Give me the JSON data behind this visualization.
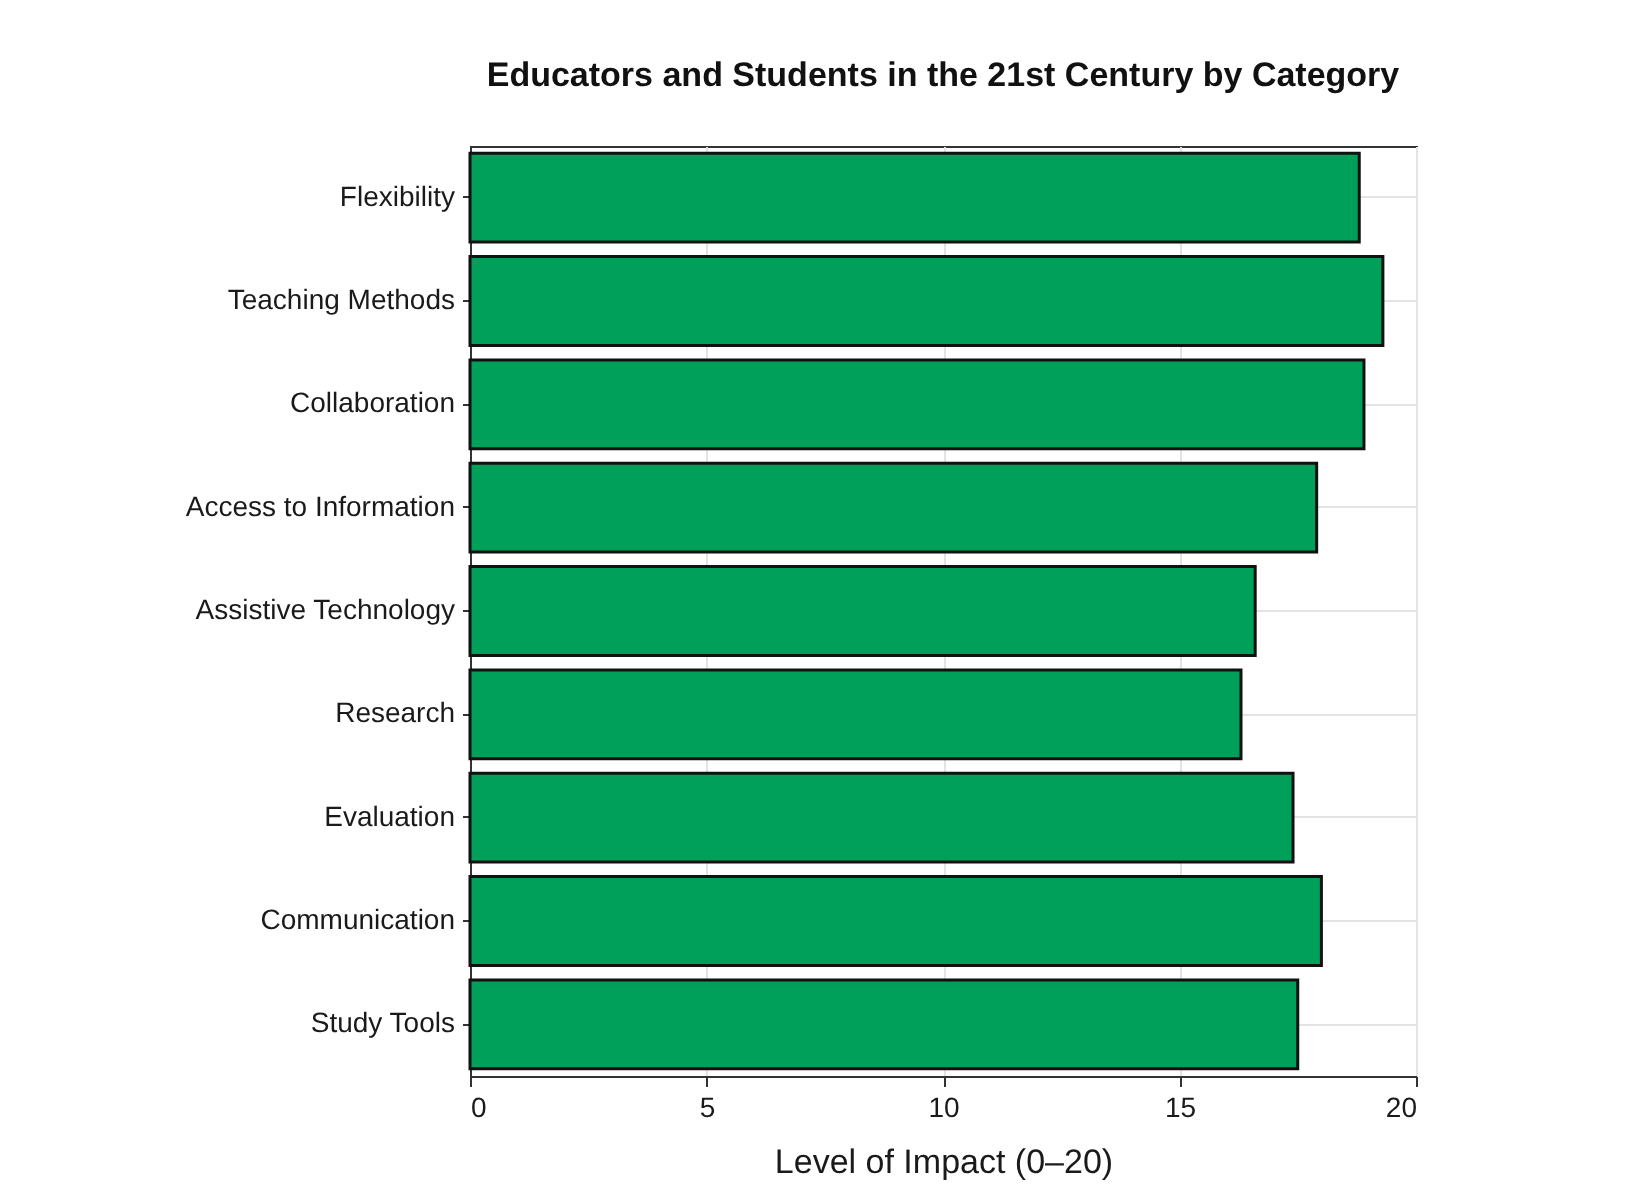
{
  "chart_data": {
    "type": "bar",
    "orientation": "horizontal",
    "title": "Educators and Students in the 21st Century by Category",
    "xlabel": "Level of Impact (0–20)",
    "categories": [
      "Flexibility",
      "Teaching Methods",
      "Collaboration",
      "Access to Information",
      "Assistive Technology",
      "Research",
      "Evaluation",
      "Communication",
      "Study Tools"
    ],
    "values": [
      18.8,
      19.3,
      18.9,
      17.9,
      16.6,
      16.3,
      17.4,
      18.0,
      17.5
    ],
    "color": "#00a05a",
    "xlim": [
      0,
      20
    ],
    "xticks": [
      0,
      5,
      10,
      15,
      20
    ],
    "grid": true
  }
}
